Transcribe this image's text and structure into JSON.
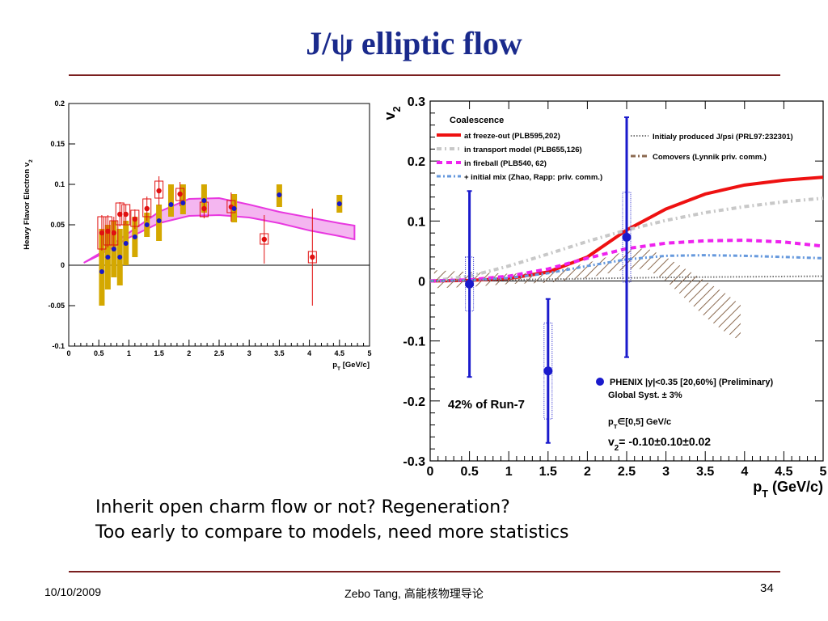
{
  "slide": {
    "title": "J/ψ elliptic flow",
    "caption_line1": "Inherit open charm flow or not? Regeneration?",
    "caption_line2": "Too early to compare to models, need more statistics",
    "footer_date": "10/10/2009",
    "footer_author": "Zebo Tang, 高能核物理导论",
    "page_number": "34"
  },
  "chart_data": [
    {
      "type": "scatter",
      "ylabel": "Heavy Flavor Electron v",
      "ylabel_sub": "2",
      "xlabel": "p",
      "xlabel_sub": "T",
      "xlabel_unit": " [GeV/c]",
      "xlim": [
        0,
        5
      ],
      "ylim": [
        -0.1,
        0.2
      ],
      "xticks": [
        "0",
        "0.5",
        "1",
        "1.5",
        "2",
        "2.5",
        "3",
        "3.5",
        "4",
        "4.5",
        "5"
      ],
      "yticks": [
        "-0.1",
        "-0.05",
        "0",
        "0.05",
        "0.1",
        "0.15",
        "0.2"
      ],
      "colors": {
        "blue": "#1818c8",
        "red": "#e01010",
        "gold": "#d4a800",
        "band": "#e838e0"
      },
      "series": [
        {
          "style": "blue-points-gold-syst",
          "points": [
            {
              "x": 0.55,
              "y": -0.008,
              "sys_lo": -0.05,
              "sys_hi": 0.045
            },
            {
              "x": 0.65,
              "y": 0.01,
              "sys_lo": -0.03,
              "sys_hi": 0.05
            },
            {
              "x": 0.75,
              "y": 0.02,
              "sys_lo": -0.015,
              "sys_hi": 0.055
            },
            {
              "x": 0.85,
              "y": 0.01,
              "sys_lo": -0.025,
              "sys_hi": 0.045
            },
            {
              "x": 0.95,
              "y": 0.027,
              "sys_lo": 0.0,
              "sys_hi": 0.055
            },
            {
              "x": 1.1,
              "y": 0.035,
              "sys_lo": 0.01,
              "sys_hi": 0.06
            },
            {
              "x": 1.3,
              "y": 0.05,
              "sys_lo": 0.035,
              "sys_hi": 0.065
            },
            {
              "x": 1.5,
              "y": 0.055,
              "sys_lo": 0.03,
              "sys_hi": 0.075
            },
            {
              "x": 1.7,
              "y": 0.075,
              "sys_lo": 0.06,
              "sys_hi": 0.1
            },
            {
              "x": 1.9,
              "y": 0.077,
              "sys_lo": 0.063,
              "sys_hi": 0.1
            },
            {
              "x": 2.25,
              "y": 0.08,
              "sys_lo": 0.065,
              "sys_hi": 0.1
            },
            {
              "x": 2.75,
              "y": 0.07,
              "sys_lo": 0.053,
              "sys_hi": 0.088
            },
            {
              "x": 3.5,
              "y": 0.087,
              "sys_lo": 0.072,
              "sys_hi": 0.1
            },
            {
              "x": 4.5,
              "y": 0.076,
              "sys_lo": 0.065,
              "sys_hi": 0.087
            }
          ]
        },
        {
          "style": "red-points-red-box",
          "points": [
            {
              "x": 0.55,
              "y": 0.04,
              "err": 0.022,
              "box_lo": 0.02,
              "box_hi": 0.06
            },
            {
              "x": 0.65,
              "y": 0.042,
              "err": 0.02,
              "box_lo": 0.025,
              "box_hi": 0.06
            },
            {
              "x": 0.75,
              "y": 0.04,
              "err": 0.02,
              "box_lo": 0.025,
              "box_hi": 0.055
            },
            {
              "x": 0.85,
              "y": 0.063,
              "err": 0.015,
              "box_lo": 0.05,
              "box_hi": 0.077
            },
            {
              "x": 0.95,
              "y": 0.063,
              "err": 0.012,
              "box_lo": 0.05,
              "box_hi": 0.075
            },
            {
              "x": 1.1,
              "y": 0.057,
              "err": 0.012,
              "box_lo": 0.048,
              "box_hi": 0.068
            },
            {
              "x": 1.3,
              "y": 0.07,
              "err": 0.015,
              "box_lo": 0.06,
              "box_hi": 0.082
            },
            {
              "x": 1.5,
              "y": 0.092,
              "err": 0.018,
              "box_lo": 0.083,
              "box_hi": 0.104
            },
            {
              "x": 1.85,
              "y": 0.088,
              "err": 0.015,
              "box_lo": 0.08,
              "box_hi": 0.095
            },
            {
              "x": 2.25,
              "y": 0.07,
              "err": 0.012,
              "box_lo": 0.06,
              "box_hi": 0.078
            },
            {
              "x": 2.7,
              "y": 0.072,
              "err": 0.018,
              "box_lo": 0.065,
              "box_hi": 0.08
            },
            {
              "x": 3.25,
              "y": 0.032,
              "err": 0.03,
              "box_lo": 0.026,
              "box_hi": 0.039
            },
            {
              "x": 4.05,
              "y": 0.01,
              "err": 0.06,
              "box_lo": 0.003,
              "box_hi": 0.017
            }
          ]
        }
      ],
      "band": {
        "x": [
          0.25,
          0.5,
          1.0,
          1.5,
          2.0,
          2.5,
          3.0,
          3.5,
          4.0,
          4.5,
          4.75
        ],
        "upper": [
          0.003,
          0.014,
          0.04,
          0.066,
          0.082,
          0.083,
          0.075,
          0.066,
          0.059,
          0.052,
          0.049
        ],
        "lower": [
          0.003,
          0.012,
          0.034,
          0.052,
          0.061,
          0.062,
          0.059,
          0.052,
          0.043,
          0.036,
          0.032
        ]
      }
    },
    {
      "type": "line",
      "ylabel": "v",
      "ylabel_sub": "2",
      "xlabel": "p",
      "xlabel_sub": "T",
      "xlabel_unit": " (GeV/c)",
      "xlim": [
        0,
        5
      ],
      "ylim": [
        -0.3,
        0.3
      ],
      "xticks": [
        "0",
        "0.5",
        "1",
        "1.5",
        "2",
        "2.5",
        "3",
        "3.5",
        "4",
        "4.5",
        "5"
      ],
      "yticks": [
        "-0.3",
        "-0.2",
        "-0.1",
        "0",
        "0.1",
        "0.2",
        "0.3"
      ],
      "legend_title": "Coalescence",
      "legend": [
        {
          "label": "at freeze-out (PLB595,202)",
          "color": "#ee1111",
          "dash": "solid"
        },
        {
          "label": "in transport model (PLB655,126)",
          "color": "#c8c8c8",
          "dash": "dot-dash"
        },
        {
          "label": "in fireball (PLB540, 62)",
          "color": "#ee22ee",
          "dash": "dashed"
        },
        {
          "label": "+ initial mix (Zhao, Rapp: priv. comm.)",
          "color": "#6699dd",
          "dash": "dot-dash"
        }
      ],
      "legend_right": [
        {
          "label": "Initialy produced J/psi (PRL97:232301)",
          "color": "#888888",
          "dash": "dotted"
        },
        {
          "label": "Comovers (Lynnik priv. comm.)",
          "color": "#8b6a50",
          "dash": "dash-dot"
        }
      ],
      "series": [
        {
          "name": "at freeze-out (PLB595,202)",
          "x": [
            0,
            0.5,
            1.0,
            1.5,
            2.0,
            2.5,
            3.0,
            3.5,
            4.0,
            4.5,
            5.0
          ],
          "y": [
            0.0,
            0.001,
            0.004,
            0.015,
            0.04,
            0.085,
            0.12,
            0.145,
            0.16,
            0.168,
            0.173
          ]
        },
        {
          "name": "in transport model (PLB655,126)",
          "x": [
            0,
            0.5,
            1.0,
            1.5,
            2.0,
            2.5,
            3.0,
            3.5,
            4.0,
            4.5,
            5.0
          ],
          "y": [
            0.0,
            0.008,
            0.025,
            0.045,
            0.066,
            0.085,
            0.101,
            0.114,
            0.124,
            0.132,
            0.138
          ]
        },
        {
          "name": "in fireball (PLB540, 62)",
          "x": [
            0,
            0.5,
            1.0,
            1.5,
            2.0,
            2.5,
            3.0,
            3.5,
            4.0,
            4.5,
            5.0
          ],
          "y": [
            0.0,
            0.002,
            0.008,
            0.02,
            0.038,
            0.054,
            0.063,
            0.067,
            0.068,
            0.065,
            0.058
          ]
        },
        {
          "name": "+ initial mix (Zhao, Rapp: priv. comm.)",
          "x": [
            0,
            0.5,
            1.0,
            1.5,
            2.0,
            2.5,
            3.0,
            3.5,
            4.0,
            4.5,
            5.0
          ],
          "y": [
            0.0,
            0.001,
            0.005,
            0.013,
            0.025,
            0.036,
            0.042,
            0.043,
            0.042,
            0.04,
            0.038
          ]
        },
        {
          "name": "Initialy produced J/psi (PRL97:232301)",
          "x": [
            0,
            1.0,
            2.0,
            3.0,
            4.0,
            5.0
          ],
          "y": [
            0.0,
            0.002,
            0.004,
            0.006,
            0.007,
            0.008
          ]
        }
      ],
      "comovers": {
        "x": [
          0.05,
          0.5,
          1.0,
          1.5,
          2.0,
          2.5,
          2.75,
          3.0,
          3.25,
          3.5,
          3.75,
          3.95
        ],
        "upper": [
          0.018,
          0.015,
          0.012,
          0.015,
          0.03,
          0.05,
          0.055,
          0.04,
          0.02,
          0.0,
          -0.02,
          -0.04
        ],
        "lower": [
          -0.012,
          -0.01,
          -0.005,
          -0.003,
          0.005,
          0.02,
          0.02,
          0.0,
          -0.03,
          -0.06,
          -0.085,
          -0.1
        ]
      },
      "data_points": [
        {
          "x": 0.5,
          "y": -0.005,
          "err": 0.155,
          "sys": 0.045
        },
        {
          "x": 1.5,
          "y": -0.15,
          "err": 0.12,
          "sys": 0.08
        },
        {
          "x": 2.5,
          "y": 0.073,
          "err": 0.2,
          "sys": 0.075
        }
      ],
      "data_color": "#1a1acc",
      "data_legend": "PHENIX |y|<0.35 [20,60%] (Preliminary)",
      "data_legend_line2": "Global Syst. ± 3%",
      "run_label": "42% of Run-7",
      "pt_range_label": "p",
      "pt_range_sub": "T",
      "pt_range_value": "∈[0,5] GeV/c",
      "v2_summary_label": "v",
      "v2_summary_sub": "2",
      "v2_summary_value": "= -0.10±0.10±0.02"
    }
  ]
}
